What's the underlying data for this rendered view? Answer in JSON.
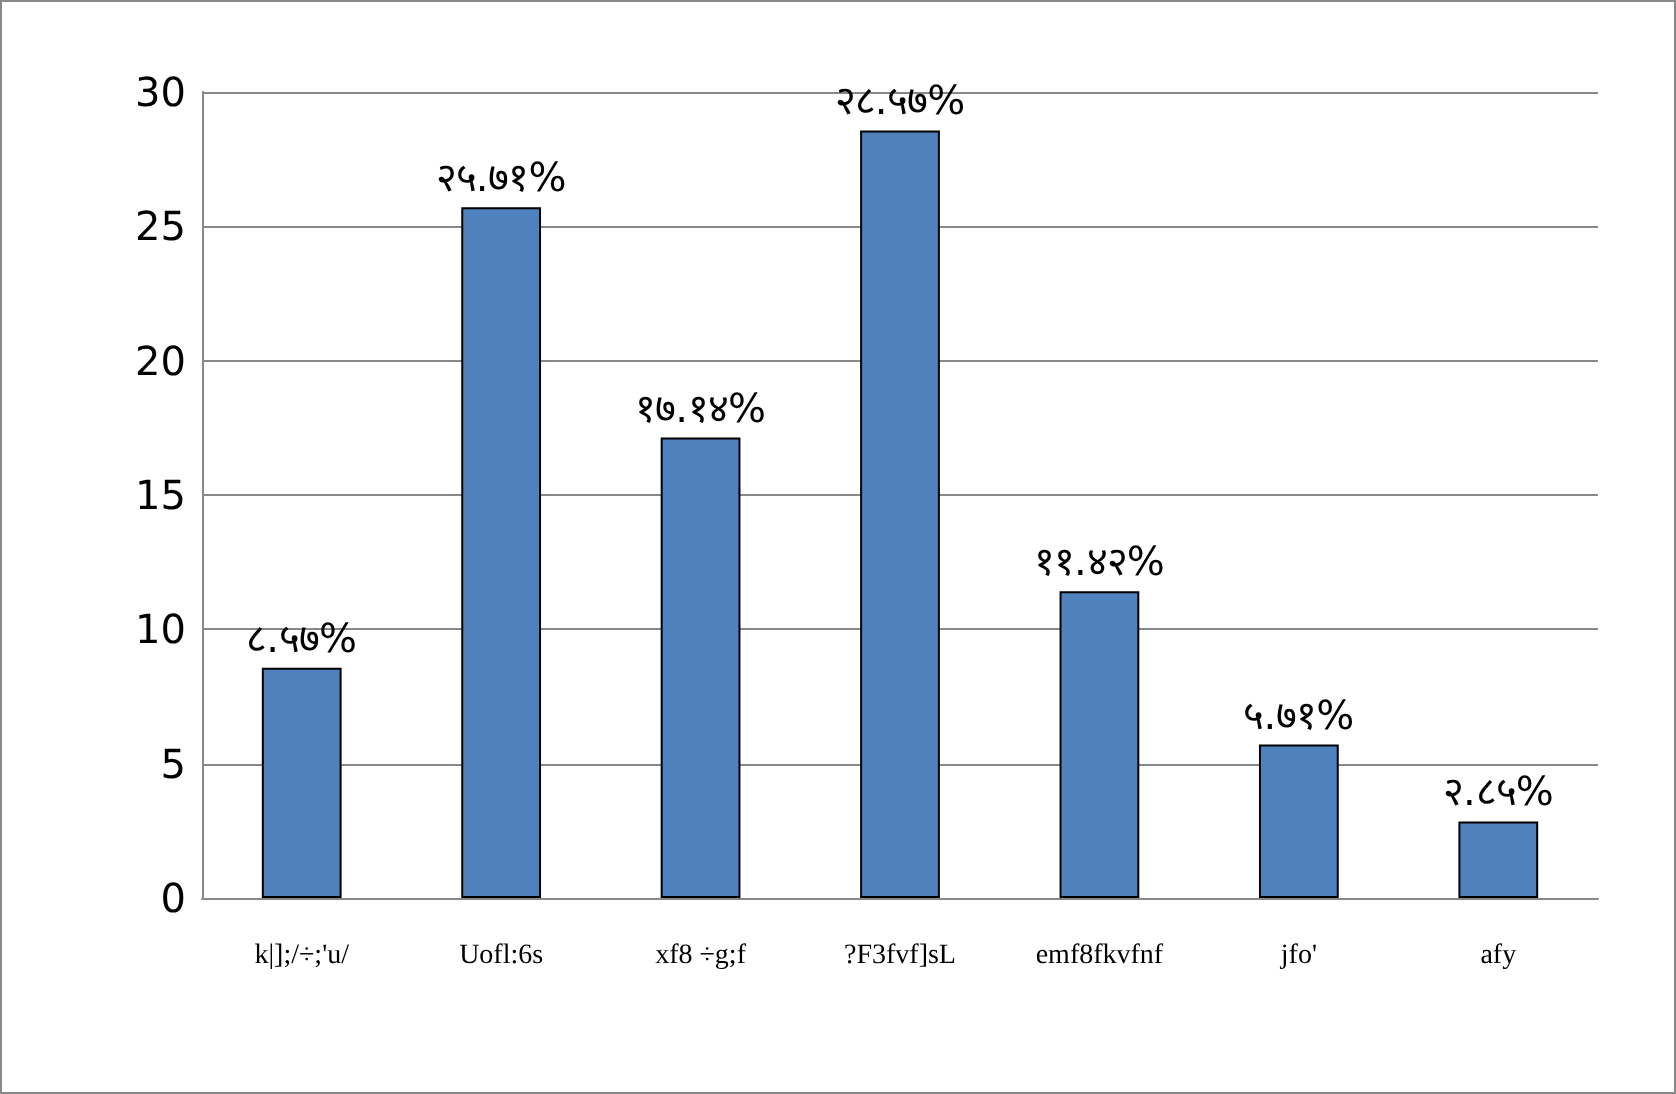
{
  "chart_data": {
    "type": "bar",
    "categories": [
      "k|];/÷;'u/",
      "Uofl:6s",
      "xf8 ÷g;f",
      "?F3fvf]sL",
      "emf8fkvfnf",
      "jfo'",
      "afy"
    ],
    "values": [
      8.57,
      25.71,
      17.14,
      28.57,
      11.42,
      5.71,
      2.85
    ],
    "value_labels": [
      "८.५७%",
      "२५.७१%",
      "१७.१४%",
      "२८.५७%",
      "११.४२%",
      "५.७१%",
      "२.८५%"
    ],
    "color": "#4f81bd",
    "ylim": [
      0,
      30
    ],
    "yticks": [
      0,
      5,
      10,
      15,
      20,
      25,
      30
    ],
    "grid": "y"
  }
}
